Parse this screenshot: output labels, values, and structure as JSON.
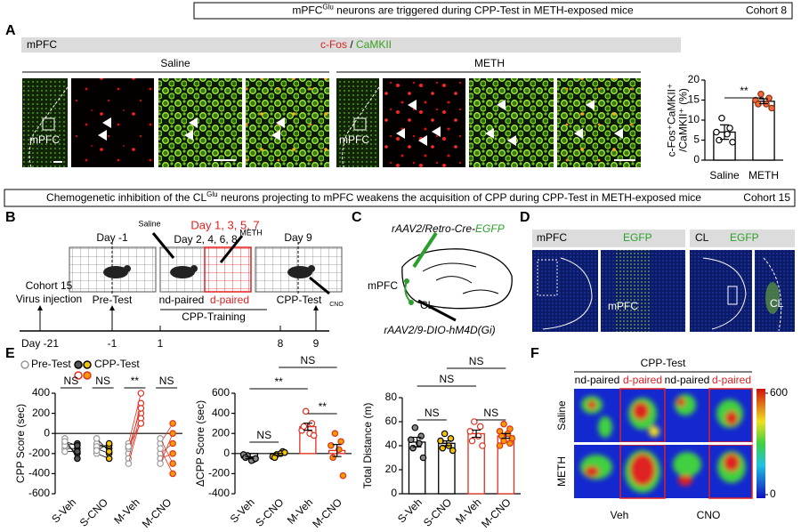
{
  "banner_a": {
    "parts": [
      "mPFC",
      "Glu",
      " neurons are triggered during CPP-Test in METH-exposed mice"
    ],
    "cohort": "Cohort 8"
  },
  "panel_a": {
    "letter": "A",
    "region": "mPFC",
    "stain_1": "c-Fos",
    "separator": " / ",
    "stain_2": "CaMKII",
    "groups": [
      "Saline",
      "METH"
    ],
    "inset_label": "mPFC"
  },
  "banner_b": {
    "parts": [
      "Chemogenetic inhibition of the CL",
      "Glu",
      " neurons projecting to mPFC weakens the acquisition of CPP during CPP-Test in METH-exposed mice"
    ],
    "cohort": "Cohort 15"
  },
  "panel_b": {
    "letter": "B",
    "saline": "Saline",
    "meth": "METH",
    "odd_days": "Day 1, 3, 5, 7",
    "pre_day": "Day -1",
    "even_days": "Day 2, 4, 6, 8",
    "test_day": "Day 9",
    "cohort": "Cohort 15",
    "injection": "Virus injection",
    "pre_test": "Pre-Test",
    "nd_paired": "nd-paired",
    "d_paired": "d-paired",
    "cpp_test": "CPP-Test",
    "training": "CPP-Training",
    "cno": "CNO",
    "timeline": [
      "Day -21",
      "-1",
      "1",
      "8",
      "9"
    ]
  },
  "panel_c": {
    "letter": "C",
    "virus_1": [
      "rAAV2/Retro-Cre-",
      "EGFP"
    ],
    "region_1": "mPFC",
    "region_2": "CL",
    "virus_2": "rAAV2/9-DIO-hM4D(Gi)"
  },
  "panel_d": {
    "letter": "D",
    "headers": [
      {
        "region": "mPFC",
        "marker": "EGFP"
      },
      {
        "region": "CL",
        "marker": "EGFP"
      }
    ],
    "labels": [
      "mPFC",
      "CL"
    ]
  },
  "panel_e": {
    "letter": "E"
  },
  "panel_f": {
    "letter": "F",
    "title": "CPP-Test",
    "columns": [
      "nd-paired",
      "d-paired",
      "nd-paired",
      "d-paired"
    ],
    "rows": [
      "Saline",
      "METH"
    ],
    "groups": [
      "Veh",
      "CNO"
    ],
    "colorbar_lim": [
      0,
      600
    ],
    "colorbar_ticks": [
      600,
      0
    ]
  },
  "chart_data": [
    {
      "type": "bar",
      "categories": [
        "Saline",
        "METH"
      ],
      "values": [
        7,
        14.7
      ],
      "errors": [
        1.8,
        0.6
      ],
      "points": [
        [
          10.5,
          8,
          7,
          6.5,
          5,
          4.5
        ],
        [
          16.5,
          15.5,
          15,
          14,
          14,
          13
        ]
      ],
      "point_colors": [
        "#ffffff",
        "#f26b3a"
      ],
      "point_edges": [
        "#000000",
        "#8a2a10"
      ],
      "bar_edges": [
        "#000000",
        "#000000"
      ],
      "ylabel": [
        "c-Fos⁺CaMKII⁺",
        "/CaMKII⁺ (%)"
      ],
      "ylim": [
        0,
        20
      ],
      "yticks": [
        0,
        5,
        10,
        15,
        20
      ],
      "annotations": [
        {
          "text": "**",
          "from": 0,
          "to": 1
        }
      ]
    },
    {
      "type": "paired-dot",
      "categories": [
        "S-Veh",
        "S-CNO",
        "M-Veh",
        "M-CNO"
      ],
      "series": [
        {
          "name": "Pre-Test",
          "color": "#999999",
          "values": [
            [
              -100,
              -150,
              -50,
              -120,
              -180,
              -80
            ],
            [
              -100,
              -150,
              -200,
              -130,
              -170,
              -50
            ],
            [
              -100,
              -200,
              -250,
              -150,
              -300,
              -130
            ],
            [
              -100,
              -200,
              -50,
              -150,
              -250,
              -300
            ]
          ]
        },
        {
          "name": "CPP-Test",
          "point_colors": [
            "#555555",
            "#f5c400",
            "#ffffff",
            "#f59a00"
          ],
          "point_edges": [
            "#000000",
            "#000000",
            "#e03020",
            "#e03020"
          ],
          "values": [
            [
              -200,
              -150,
              -250,
              -100,
              -180,
              -120
            ],
            [
              -150,
              -200,
              -250,
              -120,
              -100,
              -180
            ],
            [
              400,
              300,
              200,
              250,
              150,
              100
            ],
            [
              100,
              -100,
              -300,
              -400,
              -200,
              0
            ]
          ]
        }
      ],
      "ylabel": [
        "CPP Score (sec)"
      ],
      "ylim": [
        -600,
        400
      ],
      "yticks": [
        -600,
        -400,
        -200,
        0,
        200,
        400
      ],
      "annotations": [
        {
          "text": "NS",
          "from": 0,
          "to": 0
        },
        {
          "text": "NS",
          "from": 1,
          "to": 1
        },
        {
          "text": "**",
          "from": 2,
          "to": 2
        },
        {
          "text": "NS",
          "from": 3,
          "to": 3
        }
      ]
    },
    {
      "type": "bar",
      "categories": [
        "S-Veh",
        "S-CNO",
        "M-Veh",
        "M-CNO"
      ],
      "values": [
        -42,
        -8,
        267,
        30
      ],
      "errors": [
        10,
        10,
        35,
        60
      ],
      "points": [
        [
          -20,
          -60,
          -10,
          -70,
          -40,
          -50
        ],
        [
          -10,
          20,
          -30,
          0,
          -40,
          10
        ],
        [
          420,
          300,
          230,
          200,
          270,
          180
        ],
        [
          200,
          120,
          80,
          40,
          -40,
          -220
        ]
      ],
      "point_colors": [
        "#888888",
        "#f5c400",
        "#ffffff",
        "#f59a00"
      ],
      "point_edges": [
        "#000000",
        "#000000",
        "#e03020",
        "#e03020"
      ],
      "bar_edges": [
        "#000000",
        "#000000",
        "#e03020",
        "#e03020"
      ],
      "ylabel": [
        "ΔCPP Score (sec)"
      ],
      "ylim": [
        -400,
        600
      ],
      "yticks": [
        -400,
        -200,
        0,
        200,
        400,
        600
      ],
      "annotations": [
        {
          "text": "NS",
          "from": 0,
          "to": 1
        },
        {
          "text": "**",
          "from": 0,
          "to": 2
        },
        {
          "text": "**",
          "from": 2,
          "to": 3
        },
        {
          "text": "NS",
          "from": 1,
          "to": 3
        }
      ]
    },
    {
      "type": "bar",
      "categories": [
        "S-Veh",
        "S-CNO",
        "M-Veh",
        "M-CNO"
      ],
      "values": [
        43,
        42,
        50,
        48.2
      ],
      "errors": [
        4,
        2,
        3,
        2
      ],
      "points": [
        [
          55,
          48,
          45,
          42,
          38,
          30
        ],
        [
          50,
          46,
          44,
          40,
          38,
          36
        ],
        [
          60,
          56,
          52,
          48,
          44,
          40
        ],
        [
          58,
          54,
          52,
          50,
          48,
          46,
          44,
          42,
          40
        ]
      ],
      "point_colors": [
        "#888888",
        "#f5c400",
        "#ffffff",
        "#f59a00"
      ],
      "point_edges": [
        "#000000",
        "#000000",
        "#e03020",
        "#e03020"
      ],
      "bar_edges": [
        "#000000",
        "#000000",
        "#e03020",
        "#e03020"
      ],
      "ylabel": [
        "Total Distance (m)"
      ],
      "ylim": [
        0,
        80
      ],
      "yticks": [
        0,
        20,
        40,
        60,
        80
      ],
      "annotations": [
        {
          "text": "NS",
          "from": 0,
          "to": 1
        },
        {
          "text": "NS",
          "from": 0,
          "to": 2
        },
        {
          "text": "NS",
          "from": 1,
          "to": 3
        },
        {
          "text": "NS",
          "from": 2,
          "to": 3
        }
      ]
    }
  ]
}
